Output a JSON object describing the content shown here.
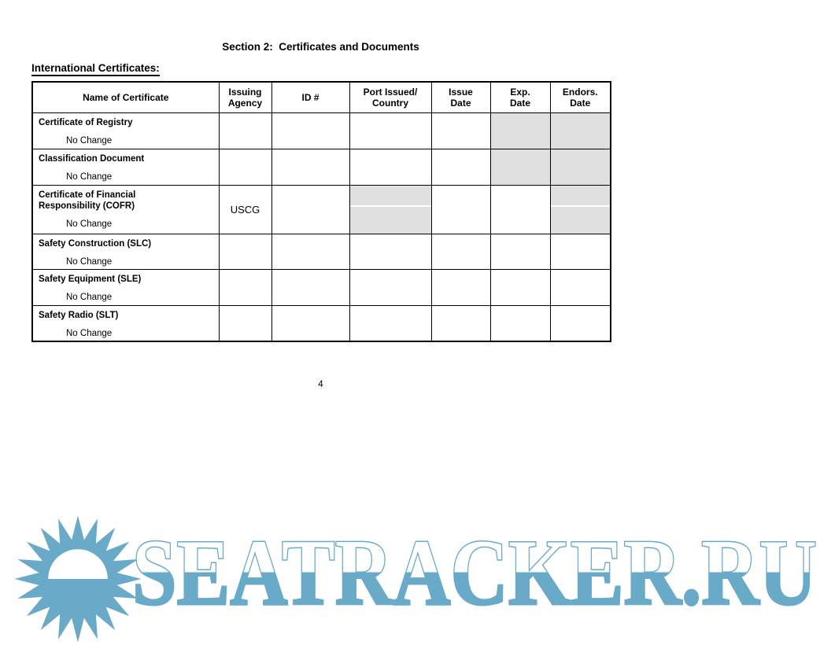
{
  "document": {
    "section_title": "Section 2:  Certificates and Documents",
    "subtitle": "International Certificates:",
    "page_number": "4"
  },
  "table": {
    "headers": {
      "name": "Name of Certificate",
      "issuing_agency": "Issuing\nAgency",
      "id": "ID #",
      "port": "Port Issued/\nCountry",
      "issue_date": "Issue\nDate",
      "exp_date": "Exp.\nDate",
      "endors_date": "Endors.\nDate"
    },
    "rows": [
      {
        "name": "Certificate of Registry",
        "note": "No Change",
        "issuing_agency": "",
        "id": "",
        "port": "",
        "issue_date": "",
        "exp_date": "",
        "endors_date": ""
      },
      {
        "name": "Classification Document",
        "note": "No Change",
        "issuing_agency": "",
        "id": "",
        "port": "",
        "issue_date": "",
        "exp_date": "",
        "endors_date": ""
      },
      {
        "name": "Certificate of Financial Responsibility (COFR)",
        "note": "No Change",
        "issuing_agency": "USCG",
        "id": "",
        "port": "",
        "issue_date": "",
        "exp_date": "",
        "endors_date": ""
      },
      {
        "name": "Safety Construction (SLC)",
        "note": "No Change",
        "issuing_agency": "",
        "id": "",
        "port": "",
        "issue_date": "",
        "exp_date": "",
        "endors_date": ""
      },
      {
        "name": "Safety Equipment (SLE)",
        "note": "No Change",
        "issuing_agency": "",
        "id": "",
        "port": "",
        "issue_date": "",
        "exp_date": "",
        "endors_date": ""
      },
      {
        "name": "Safety Radio (SLT)",
        "note": "No Change",
        "issuing_agency": "",
        "id": "",
        "port": "",
        "issue_date": "",
        "exp_date": "",
        "endors_date": ""
      }
    ]
  },
  "watermark": {
    "text": "SEATRACKER.RU",
    "color": "#69aac9"
  },
  "colors": {
    "shaded_cell": "#e0e0e0",
    "border": "#000000"
  }
}
